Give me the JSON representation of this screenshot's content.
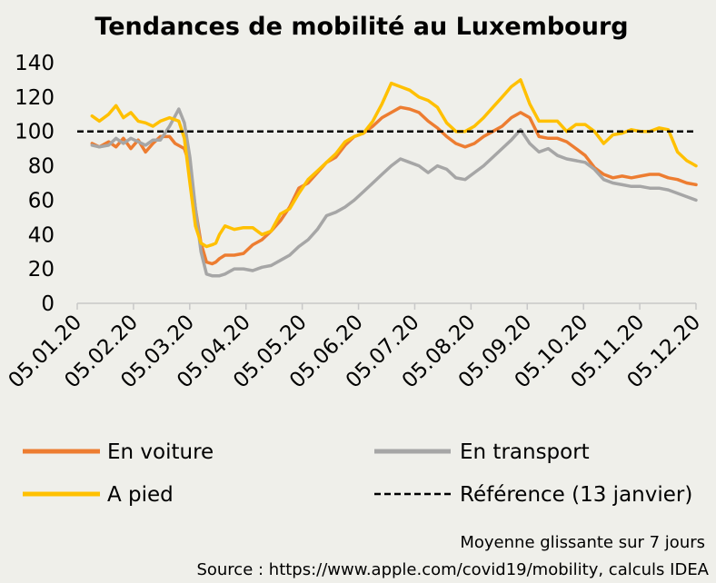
{
  "chart_data": {
    "type": "line",
    "title": "Tendances de mobilité au Luxembourg",
    "ylim": [
      0,
      140
    ],
    "yticks": [
      "0",
      "20",
      "40",
      "60",
      "80",
      "100",
      "120",
      "140"
    ],
    "xticks": [
      "05.01.20",
      "05.02.20",
      "05.03.20",
      "05.04.20",
      "05.05.20",
      "05.06.20",
      "05.07.20",
      "05.08.20",
      "05.09.20",
      "05.10.20",
      "05.11.20",
      "05.12.20"
    ],
    "xlim": [
      5,
      340
    ],
    "reference": {
      "name": "Référence (13 janvier)",
      "value": 100
    },
    "series": [
      {
        "name": "En voiture",
        "color": "#ed7d31",
        "x": [
          13,
          17,
          22,
          26,
          30,
          34,
          38,
          42,
          46,
          50,
          55,
          58,
          63,
          66,
          69,
          72,
          75,
          78,
          80,
          82,
          85,
          90,
          95,
          100,
          105,
          110,
          115,
          120,
          125,
          130,
          135,
          140,
          145,
          150,
          155,
          160,
          165,
          170,
          175,
          180,
          185,
          190,
          195,
          200,
          205,
          210,
          215,
          220,
          225,
          230,
          235,
          240,
          245,
          250,
          255,
          260,
          265,
          270,
          275,
          280,
          285,
          290,
          295,
          300,
          305,
          310,
          315,
          320,
          325,
          330,
          335,
          340
        ],
        "y": [
          93,
          91,
          94,
          91,
          96,
          90,
          95,
          88,
          93,
          97,
          97,
          93,
          90,
          80,
          55,
          35,
          24,
          23,
          24,
          26,
          28,
          28,
          29,
          34,
          37,
          42,
          48,
          56,
          67,
          70,
          76,
          82,
          85,
          92,
          97,
          99,
          103,
          108,
          111,
          114,
          113,
          111,
          106,
          102,
          97,
          93,
          91,
          93,
          97,
          100,
          103,
          108,
          111,
          108,
          97,
          96,
          96,
          94,
          90,
          86,
          79,
          75,
          73,
          74,
          73,
          74,
          75,
          75,
          73,
          72,
          70,
          69
        ]
      },
      {
        "name": "En transport",
        "color": "#a6a6a6",
        "x": [
          13,
          17,
          22,
          26,
          30,
          34,
          38,
          42,
          46,
          50,
          55,
          60,
          63,
          66,
          69,
          72,
          75,
          78,
          80,
          82,
          85,
          90,
          95,
          100,
          105,
          110,
          115,
          120,
          125,
          130,
          135,
          140,
          145,
          150,
          155,
          160,
          165,
          170,
          175,
          180,
          185,
          190,
          195,
          200,
          205,
          210,
          215,
          220,
          225,
          230,
          235,
          240,
          245,
          250,
          255,
          260,
          265,
          270,
          275,
          280,
          285,
          290,
          295,
          300,
          305,
          310,
          315,
          320,
          325,
          330,
          335,
          340
        ],
        "y": [
          92,
          91,
          92,
          96,
          93,
          96,
          94,
          92,
          95,
          95,
          103,
          113,
          105,
          85,
          55,
          30,
          17,
          16,
          16,
          16,
          17,
          20,
          20,
          19,
          21,
          22,
          25,
          28,
          33,
          37,
          43,
          51,
          53,
          56,
          60,
          65,
          70,
          75,
          80,
          84,
          82,
          80,
          76,
          80,
          78,
          73,
          72,
          76,
          80,
          85,
          90,
          95,
          101,
          93,
          88,
          90,
          86,
          84,
          83,
          82,
          78,
          72,
          70,
          69,
          68,
          68,
          67,
          67,
          66,
          64,
          62,
          60
        ]
      },
      {
        "name": "A pied",
        "color": "#ffc000",
        "x": [
          13,
          17,
          22,
          26,
          30,
          34,
          38,
          42,
          46,
          50,
          55,
          60,
          63,
          66,
          69,
          72,
          75,
          78,
          80,
          82,
          85,
          90,
          95,
          100,
          105,
          110,
          115,
          120,
          125,
          130,
          135,
          140,
          145,
          150,
          155,
          160,
          165,
          170,
          175,
          180,
          185,
          190,
          195,
          200,
          205,
          210,
          215,
          220,
          225,
          230,
          235,
          240,
          245,
          250,
          255,
          260,
          265,
          270,
          275,
          280,
          285,
          290,
          295,
          300,
          305,
          310,
          315,
          320,
          325,
          330,
          335,
          340
        ],
        "y": [
          109,
          106,
          110,
          115,
          108,
          111,
          106,
          105,
          103,
          106,
          108,
          106,
          96,
          70,
          45,
          35,
          33,
          34,
          35,
          40,
          45,
          43,
          44,
          44,
          40,
          42,
          52,
          55,
          64,
          72,
          77,
          82,
          87,
          94,
          97,
          99,
          106,
          116,
          128,
          126,
          124,
          120,
          118,
          114,
          105,
          100,
          100,
          103,
          108,
          114,
          120,
          126,
          130,
          116,
          106,
          106,
          106,
          100,
          104,
          104,
          100,
          93,
          98,
          99,
          101,
          100,
          100,
          102,
          101,
          88,
          83,
          80
        ]
      }
    ]
  },
  "legend": {
    "voiture": "En voiture",
    "transport": "En transport",
    "pied": "A pied",
    "reference": "Référence (13 janvier)"
  },
  "notes": {
    "smoothing": "Moyenne glissante sur 7 jours",
    "source": "Source : https://www.apple.com/covid19/mobility, calculs IDEA"
  }
}
